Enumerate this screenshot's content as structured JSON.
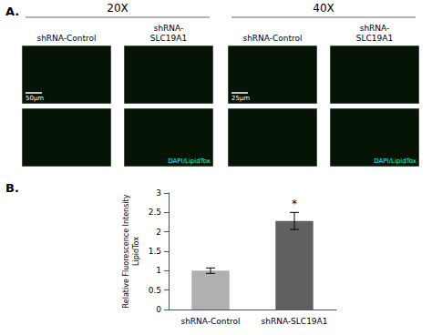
{
  "chart_data": {
    "type": "bar",
    "categories": [
      "shRNA-Control",
      "shRNA-SLC19A1"
    ],
    "values": [
      1.0,
      2.28
    ],
    "errors": [
      0.07,
      0.22
    ],
    "significance": [
      null,
      "*"
    ],
    "colors": [
      "#b0b0b0",
      "#606060"
    ],
    "ylabel": "Relative Fluorescence Intensity\nLipidTox",
    "ylim": [
      0,
      3.0
    ],
    "yticks": [
      0,
      0.5,
      1.0,
      1.5,
      2.0,
      2.5,
      3.0
    ],
    "grid": false,
    "annotations": [
      "A.",
      "20X",
      "40X",
      "shRNA-Control",
      "shRNA-\nSLC19A1",
      "shRNA-Control",
      "shRNA-\nSLC19A1",
      "50μm",
      "25μm",
      "DAPI/LipidTox",
      "DAPI/LipidTox",
      "B."
    ]
  }
}
